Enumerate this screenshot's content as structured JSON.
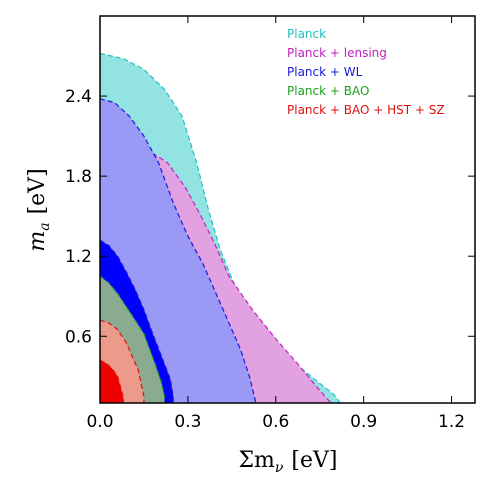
{
  "chart_data": {
    "type": "contour",
    "xlabel": "Σm",
    "xlabel_sub": "ν",
    "xlabel_unit": "[eV]",
    "ylabel": "m",
    "ylabel_sub": "a",
    "ylabel_unit": "[eV]",
    "xlim": [
      0.0,
      1.28
    ],
    "ylim": [
      0.1,
      3.0
    ],
    "xticks": [
      0.0,
      0.3,
      0.6,
      0.9,
      1.2
    ],
    "xtick_labels": [
      "0.0",
      "0.3",
      "0.6",
      "0.9",
      "1.2"
    ],
    "yticks": [
      0.6,
      1.2,
      1.8,
      2.4
    ],
    "ytick_labels": [
      "0.6",
      "1.2",
      "1.8",
      "2.4"
    ],
    "legend_position": "top-right",
    "series": [
      {
        "name": "Planck",
        "color": "#20c0c0",
        "fill68": "#5bd6d6",
        "fill95": "#93e3e3",
        "outer": [
          [
            0.0,
            2.72
          ],
          [
            0.08,
            2.68
          ],
          [
            0.15,
            2.6
          ],
          [
            0.22,
            2.45
          ],
          [
            0.28,
            2.25
          ],
          [
            0.33,
            1.9
          ],
          [
            0.37,
            1.55
          ],
          [
            0.41,
            1.25
          ],
          [
            0.46,
            0.98
          ],
          [
            0.53,
            0.72
          ],
          [
            0.62,
            0.48
          ],
          [
            0.72,
            0.3
          ],
          [
            0.8,
            0.16
          ],
          [
            0.82,
            0.1
          ]
        ],
        "inner": [
          [
            0.0,
            1.88
          ],
          [
            0.06,
            1.82
          ],
          [
            0.1,
            1.72
          ],
          [
            0.12,
            1.55
          ],
          [
            0.14,
            1.35
          ],
          [
            0.17,
            1.15
          ],
          [
            0.21,
            0.92
          ],
          [
            0.26,
            0.72
          ],
          [
            0.31,
            0.52
          ],
          [
            0.35,
            0.3
          ],
          [
            0.37,
            0.1
          ]
        ]
      },
      {
        "name": "Planck + lensing",
        "color": "#c020c0",
        "fill68": "#cc66cc",
        "fill95": "#e2a2e2",
        "outer": [
          [
            0.0,
            2.1
          ],
          [
            0.08,
            2.08
          ],
          [
            0.16,
            2.0
          ],
          [
            0.23,
            1.9
          ],
          [
            0.29,
            1.72
          ],
          [
            0.34,
            1.52
          ],
          [
            0.39,
            1.3
          ],
          [
            0.44,
            1.05
          ],
          [
            0.52,
            0.8
          ],
          [
            0.6,
            0.58
          ],
          [
            0.68,
            0.38
          ],
          [
            0.74,
            0.22
          ],
          [
            0.78,
            0.12
          ],
          [
            0.79,
            0.1
          ]
        ],
        "inner": [
          [
            0.0,
            1.35
          ],
          [
            0.05,
            1.32
          ],
          [
            0.1,
            1.25
          ],
          [
            0.15,
            1.1
          ],
          [
            0.2,
            0.92
          ],
          [
            0.26,
            0.75
          ],
          [
            0.32,
            0.56
          ],
          [
            0.37,
            0.38
          ],
          [
            0.4,
            0.2
          ],
          [
            0.41,
            0.1
          ]
        ]
      },
      {
        "name": "Planck + WL",
        "color": "#1a1ad8",
        "fill68": "#0000ff",
        "fill95": "#9a9af6",
        "outer": [
          [
            0.0,
            2.38
          ],
          [
            0.05,
            2.35
          ],
          [
            0.1,
            2.25
          ],
          [
            0.15,
            2.1
          ],
          [
            0.2,
            1.9
          ],
          [
            0.25,
            1.6
          ],
          [
            0.3,
            1.35
          ],
          [
            0.35,
            1.15
          ],
          [
            0.39,
            0.95
          ],
          [
            0.43,
            0.75
          ],
          [
            0.48,
            0.5
          ],
          [
            0.51,
            0.3
          ],
          [
            0.53,
            0.12
          ],
          [
            0.53,
            0.1
          ]
        ],
        "inner": [
          [
            0.0,
            1.32
          ],
          [
            0.03,
            1.28
          ],
          [
            0.06,
            1.2
          ],
          [
            0.09,
            1.08
          ],
          [
            0.12,
            0.95
          ],
          [
            0.15,
            0.8
          ],
          [
            0.18,
            0.62
          ],
          [
            0.21,
            0.45
          ],
          [
            0.24,
            0.28
          ],
          [
            0.25,
            0.15
          ],
          [
            0.25,
            0.1
          ]
        ]
      },
      {
        "name": "Planck + BAO",
        "color": "#20a020",
        "fill68": "#229922",
        "fill95": "#8aab90",
        "outer": [
          [
            0.0,
            1.05
          ],
          [
            0.03,
            1.0
          ],
          [
            0.06,
            0.92
          ],
          [
            0.09,
            0.82
          ],
          [
            0.12,
            0.72
          ],
          [
            0.15,
            0.62
          ],
          [
            0.17,
            0.5
          ],
          [
            0.19,
            0.38
          ],
          [
            0.21,
            0.25
          ],
          [
            0.22,
            0.15
          ],
          [
            0.22,
            0.1
          ]
        ],
        "inner": [
          [
            0.0,
            0.58
          ],
          [
            0.03,
            0.55
          ],
          [
            0.06,
            0.5
          ],
          [
            0.09,
            0.42
          ],
          [
            0.11,
            0.34
          ],
          [
            0.12,
            0.25
          ],
          [
            0.13,
            0.15
          ],
          [
            0.13,
            0.1
          ]
        ]
      },
      {
        "name": "Planck + BAO + HST + SZ",
        "color": "#e01010",
        "fill68": "#ee0000",
        "fill95": "#ec9a8a",
        "outer": [
          [
            0.0,
            0.72
          ],
          [
            0.03,
            0.7
          ],
          [
            0.06,
            0.65
          ],
          [
            0.09,
            0.55
          ],
          [
            0.11,
            0.45
          ],
          [
            0.13,
            0.35
          ],
          [
            0.14,
            0.25
          ],
          [
            0.15,
            0.15
          ],
          [
            0.15,
            0.1
          ]
        ],
        "inner": [
          [
            0.0,
            0.42
          ],
          [
            0.02,
            0.4
          ],
          [
            0.04,
            0.36
          ],
          [
            0.06,
            0.3
          ],
          [
            0.07,
            0.22
          ],
          [
            0.08,
            0.14
          ],
          [
            0.08,
            0.1
          ]
        ]
      }
    ]
  }
}
